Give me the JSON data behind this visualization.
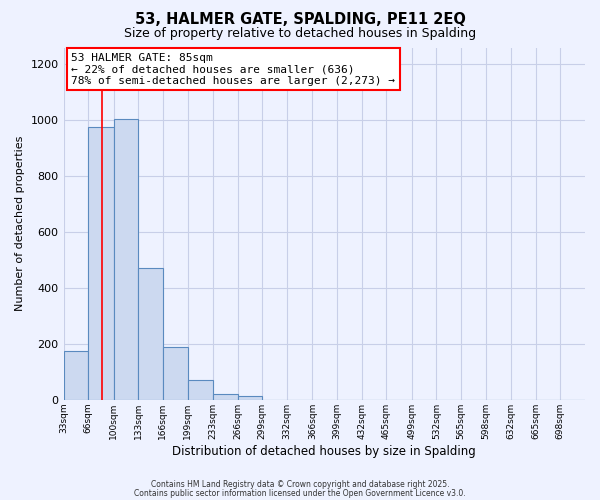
{
  "title": "53, HALMER GATE, SPALDING, PE11 2EQ",
  "subtitle": "Size of property relative to detached houses in Spalding",
  "xlabel": "Distribution of detached houses by size in Spalding",
  "ylabel": "Number of detached properties",
  "bar_color": "#ccd9f0",
  "bar_edge_color": "#5a8abf",
  "categories": [
    "33sqm",
    "66sqm",
    "100sqm",
    "133sqm",
    "166sqm",
    "199sqm",
    "233sqm",
    "266sqm",
    "299sqm",
    "332sqm",
    "366sqm",
    "399sqm",
    "432sqm",
    "465sqm",
    "499sqm",
    "532sqm",
    "565sqm",
    "598sqm",
    "632sqm",
    "665sqm",
    "698sqm"
  ],
  "values": [
    175,
    975,
    1005,
    470,
    190,
    70,
    22,
    12,
    0,
    0,
    0,
    0,
    0,
    0,
    0,
    0,
    0,
    0,
    0,
    0,
    0
  ],
  "ylim": [
    0,
    1260
  ],
  "yticks": [
    0,
    200,
    400,
    600,
    800,
    1000,
    1200
  ],
  "property_line_x": 85,
  "bin_edges": [
    33,
    66,
    100,
    133,
    166,
    199,
    233,
    266,
    299,
    332,
    366,
    399,
    432,
    465,
    499,
    532,
    565,
    598,
    632,
    665,
    698,
    731
  ],
  "annotation_title": "53 HALMER GATE: 85sqm",
  "annotation_line1": "← 22% of detached houses are smaller (636)",
  "annotation_line2": "78% of semi-detached houses are larger (2,273) →",
  "footer1": "Contains HM Land Registry data © Crown copyright and database right 2025.",
  "footer2": "Contains public sector information licensed under the Open Government Licence v3.0.",
  "bg_color": "#eef2ff",
  "plot_bg_color": "#eef2ff",
  "grid_color": "#c8cfe8"
}
